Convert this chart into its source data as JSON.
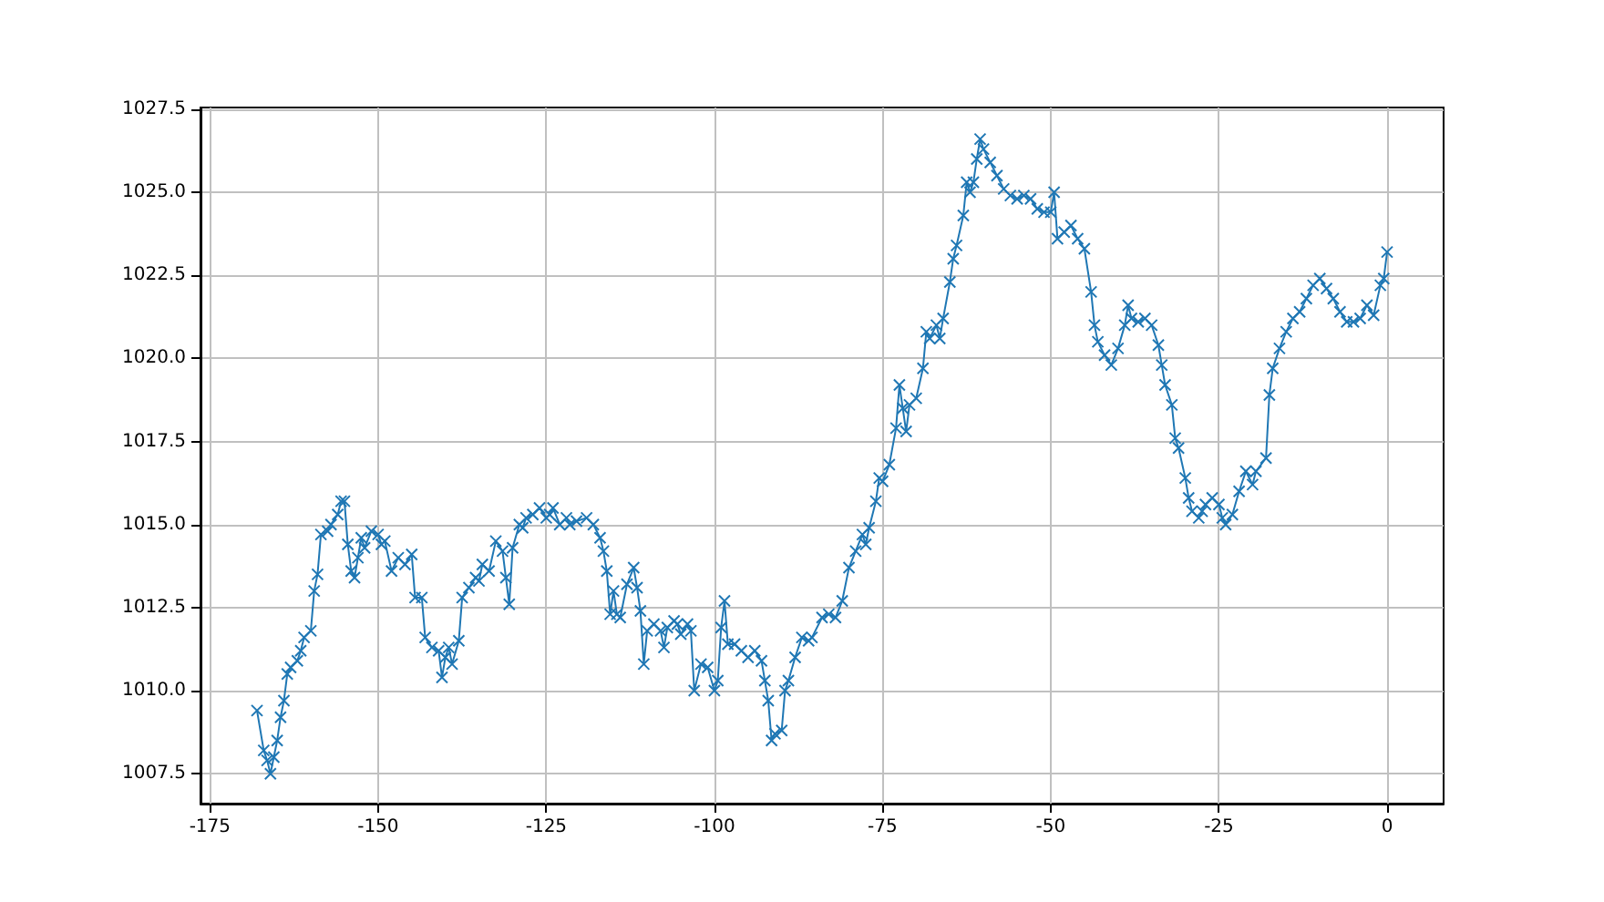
{
  "chart_data": {
    "type": "line",
    "marker": "cross",
    "grid": true,
    "xlim": [
      -176.4,
      8.4
    ],
    "xticks": [
      -175,
      -150,
      -125,
      -100,
      -75,
      -50,
      -25,
      0
    ],
    "ylim": [
      1006.6,
      1027.55
    ],
    "yticks": [
      1007.5,
      {
        "value": 1010,
        "label": "1010.0"
      },
      1012.5,
      {
        "value": 1015,
        "label": "1015.0"
      },
      1017.5,
      {
        "value": 1020,
        "label": "1020.0"
      },
      1022.5,
      {
        "value": 1025,
        "label": "1025.0"
      },
      1027.5
    ],
    "series": [
      {
        "color": "#1f77b4",
        "x": [
          -168,
          -167,
          -166.5,
          -166,
          -165.5,
          -165,
          -164.5,
          -164,
          -163.5,
          -163,
          -162,
          -161.5,
          -161,
          -160,
          -159.5,
          -159,
          -158.5,
          -157.5,
          -157,
          -156,
          -155.5,
          -155,
          -154.5,
          -154,
          -153.5,
          -153,
          -152.5,
          -152,
          -151,
          -150,
          -149.5,
          -149,
          -148,
          -147,
          -146,
          -145,
          -144.5,
          -143.5,
          -143,
          -142,
          -141,
          -140.5,
          -140,
          -139.5,
          -139,
          -138,
          -137.5,
          -136.5,
          -135.5,
          -135,
          -134.5,
          -133.5,
          -132.5,
          -131.5,
          -131,
          -130.5,
          -130,
          -129,
          -128.5,
          -128,
          -127,
          -126,
          -125,
          -124.5,
          -124,
          -123,
          -122,
          -121.5,
          -120.5,
          -119,
          -118,
          -117,
          -116.5,
          -116,
          -115.5,
          -115,
          -114.5,
          -114,
          -113,
          -112,
          -111.5,
          -111,
          -110.5,
          -110,
          -109,
          -108,
          -107.5,
          -107,
          -106,
          -105.5,
          -105,
          -104,
          -103.5,
          -103,
          -102,
          -101,
          -100,
          -99.5,
          -99,
          -98.5,
          -98,
          -97,
          -96,
          -95,
          -94,
          -93,
          -92.5,
          -92,
          -91.5,
          -91,
          -90,
          -89.5,
          -89,
          -88,
          -87,
          -86,
          -85.5,
          -84,
          -83,
          -82,
          -81,
          -80,
          -79,
          -78,
          -77.5,
          -77,
          -76,
          -75.5,
          -75,
          -74,
          -73,
          -72.5,
          -72,
          -71.5,
          -71,
          -70,
          -69,
          -68.5,
          -68,
          -67,
          -66.5,
          -66,
          -65,
          -64.5,
          -64,
          -63,
          -62.5,
          -62,
          -61.5,
          -61,
          -60.5,
          -60,
          -59,
          -58,
          -57,
          -56,
          -55,
          -54,
          -53,
          -52,
          -51,
          -50,
          -49.5,
          -49,
          -48,
          -47,
          -46,
          -45,
          -44,
          -43.5,
          -43,
          -42,
          -41,
          -40,
          -39,
          -38.5,
          -38,
          -37,
          -36,
          -35,
          -34,
          -33.5,
          -33,
          -32,
          -31.5,
          -31,
          -30,
          -29.5,
          -29,
          -28,
          -27.5,
          -27,
          -26,
          -25,
          -24.5,
          -24,
          -23,
          -22,
          -21,
          -20,
          -19.5,
          -18,
          -17.5,
          -17,
          -16,
          -15,
          -14,
          -13,
          -12,
          -11,
          -10,
          -9,
          -8,
          -7,
          -6,
          -5,
          -4,
          -3,
          -2,
          -1,
          -0.5,
          0
        ],
        "values": [
          1009.4,
          1008.2,
          1007.9,
          1007.5,
          1008.0,
          1008.5,
          1009.2,
          1009.7,
          1010.5,
          1010.7,
          1010.9,
          1011.2,
          1011.6,
          1011.8,
          1013.0,
          1013.5,
          1014.7,
          1014.8,
          1015.0,
          1015.3,
          1015.7,
          1015.7,
          1014.4,
          1013.6,
          1013.4,
          1014.0,
          1014.6,
          1014.3,
          1014.8,
          1014.7,
          1014.4,
          1014.5,
          1013.6,
          1014.0,
          1013.8,
          1014.1,
          1012.8,
          1012.8,
          1011.6,
          1011.3,
          1011.2,
          1010.4,
          1011.0,
          1011.3,
          1010.8,
          1011.5,
          1012.8,
          1013.1,
          1013.4,
          1013.3,
          1013.8,
          1013.6,
          1014.5,
          1014.2,
          1013.4,
          1012.6,
          1014.3,
          1015.0,
          1014.9,
          1015.2,
          1015.3,
          1015.5,
          1015.2,
          1015.3,
          1015.5,
          1015.0,
          1015.2,
          1015.0,
          1015.1,
          1015.2,
          1015.0,
          1014.6,
          1014.2,
          1013.6,
          1012.3,
          1013.0,
          1012.3,
          1012.2,
          1013.2,
          1013.7,
          1013.1,
          1012.4,
          1010.8,
          1011.8,
          1012.0,
          1011.8,
          1011.3,
          1011.9,
          1012.1,
          1012.0,
          1011.7,
          1012.0,
          1011.8,
          1010.0,
          1010.8,
          1010.7,
          1010.0,
          1010.3,
          1011.9,
          1012.7,
          1011.4,
          1011.4,
          1011.2,
          1011.0,
          1011.2,
          1010.9,
          1010.3,
          1009.7,
          1008.5,
          1008.7,
          1008.8,
          1010.0,
          1010.3,
          1011.0,
          1011.6,
          1011.5,
          1011.6,
          1012.2,
          1012.3,
          1012.2,
          1012.7,
          1013.7,
          1014.2,
          1014.7,
          1014.4,
          1014.9,
          1015.7,
          1016.4,
          1016.3,
          1016.8,
          1017.9,
          1019.2,
          1018.5,
          1017.8,
          1018.6,
          1018.8,
          1019.7,
          1020.8,
          1020.6,
          1021.0,
          1020.6,
          1021.2,
          1022.3,
          1023.0,
          1023.4,
          1024.3,
          1025.3,
          1025.0,
          1025.3,
          1026.0,
          1026.6,
          1026.3,
          1025.9,
          1025.5,
          1025.1,
          1024.9,
          1024.8,
          1024.9,
          1024.8,
          1024.5,
          1024.4,
          1024.4,
          1025.0,
          1023.6,
          1023.8,
          1024.0,
          1023.6,
          1023.3,
          1022.0,
          1021.0,
          1020.5,
          1020.1,
          1019.8,
          1020.3,
          1021.0,
          1021.6,
          1021.2,
          1021.1,
          1021.2,
          1021.0,
          1020.4,
          1019.8,
          1019.2,
          1018.6,
          1017.6,
          1017.3,
          1016.4,
          1015.8,
          1015.4,
          1015.2,
          1015.4,
          1015.6,
          1015.8,
          1015.6,
          1015.2,
          1015.0,
          1015.3,
          1016.0,
          1016.6,
          1016.2,
          1016.6,
          1017.0,
          1018.9,
          1019.7,
          1020.3,
          1020.8,
          1021.2,
          1021.4,
          1021.8,
          1022.2,
          1022.4,
          1022.1,
          1021.8,
          1021.4,
          1021.1,
          1021.1,
          1021.2,
          1021.6,
          1021.3,
          1022.2,
          1022.4,
          1023.2
        ]
      }
    ]
  }
}
